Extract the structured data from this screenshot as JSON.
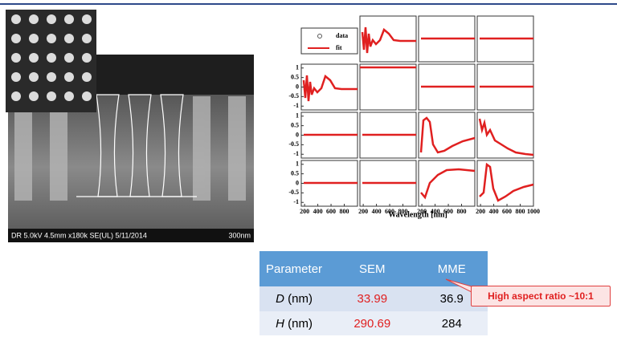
{
  "sem_image": {
    "caption": "DR 5.0kV 4.5mm x180k SE(UL) 5/11/2014",
    "scale": "300nm"
  },
  "mueller_plot": {
    "legend": [
      "data",
      "fit"
    ],
    "ylim": [
      -1.2,
      1.2
    ],
    "yticks": [
      1,
      0.5,
      0,
      -0.5,
      -1
    ],
    "xlim": [
      150,
      1000
    ],
    "xticks": [
      200,
      400,
      600,
      800
    ],
    "xticks_last_panel": [
      200,
      400,
      600,
      800,
      1000
    ],
    "xlabel": "Wavelength [nm]"
  },
  "table": {
    "header": [
      "Parameter",
      "SEM",
      "MME"
    ],
    "rows": [
      [
        {
          "symbol": "D",
          "unit": "(nm)"
        },
        "33.99",
        "36.9"
      ],
      [
        {
          "symbol": "H",
          "unit": "(nm)"
        },
        "290.69",
        "284"
      ]
    ]
  },
  "callout": "High aspect ratio ~10:1"
}
